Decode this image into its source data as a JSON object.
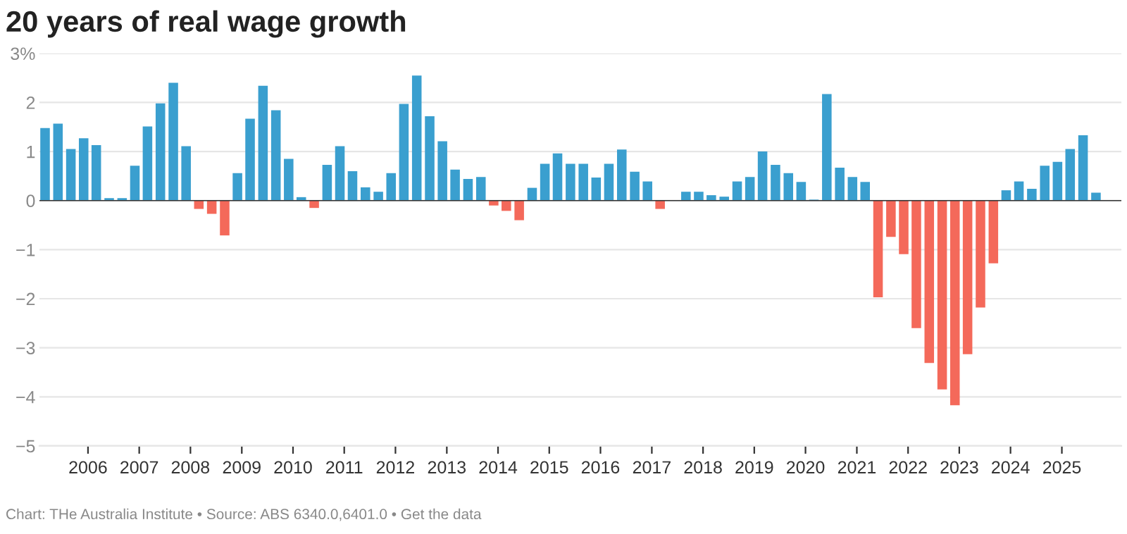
{
  "chart_data": {
    "type": "bar",
    "title": "20 years of real wage growth",
    "x": [
      "2005-03",
      "2005-06",
      "2005-09",
      "2005-12",
      "2006-03",
      "2006-06",
      "2006-09",
      "2006-12",
      "2007-03",
      "2007-06",
      "2007-09",
      "2007-12",
      "2008-03",
      "2008-06",
      "2008-09",
      "2008-12",
      "2009-03",
      "2009-06",
      "2009-09",
      "2009-12",
      "2010-03",
      "2010-06",
      "2010-09",
      "2010-12",
      "2011-03",
      "2011-06",
      "2011-09",
      "2011-12",
      "2012-03",
      "2012-06",
      "2012-09",
      "2012-12",
      "2013-03",
      "2013-06",
      "2013-09",
      "2013-12",
      "2014-03",
      "2014-06",
      "2014-09",
      "2014-12",
      "2015-03",
      "2015-06",
      "2015-09",
      "2015-12",
      "2016-03",
      "2016-06",
      "2016-09",
      "2016-12",
      "2017-03",
      "2017-06",
      "2017-09",
      "2017-12",
      "2018-03",
      "2018-06",
      "2018-09",
      "2018-12",
      "2019-03",
      "2019-06",
      "2019-09",
      "2019-12",
      "2020-03",
      "2020-06",
      "2020-09",
      "2020-12",
      "2021-03",
      "2021-06",
      "2021-09",
      "2021-12",
      "2022-03",
      "2022-06",
      "2022-09",
      "2022-12",
      "2023-03",
      "2023-06",
      "2023-09",
      "2023-12",
      "2024-03",
      "2024-06",
      "2024-09",
      "2024-12",
      "2025-03",
      "2025-06",
      "2025-09"
    ],
    "values": [
      1.48,
      1.57,
      1.05,
      1.27,
      1.13,
      0.05,
      0.05,
      0.71,
      1.51,
      1.98,
      2.4,
      1.11,
      -0.17,
      -0.27,
      -0.71,
      0.56,
      1.67,
      2.34,
      1.84,
      0.85,
      0.07,
      -0.15,
      0.73,
      1.11,
      0.6,
      0.27,
      0.18,
      0.56,
      1.97,
      2.55,
      1.72,
      1.21,
      0.63,
      0.44,
      0.48,
      -0.1,
      -0.21,
      -0.4,
      0.26,
      0.75,
      0.96,
      0.75,
      0.75,
      0.47,
      0.75,
      1.04,
      0.59,
      0.39,
      -0.17,
      null,
      0.18,
      0.18,
      0.11,
      0.08,
      0.39,
      0.48,
      1.0,
      0.73,
      0.56,
      0.38,
      0.02,
      2.17,
      0.67,
      0.48,
      0.38,
      -1.97,
      -0.74,
      -1.09,
      -2.6,
      -3.31,
      -3.85,
      -4.17,
      -3.13,
      -2.18,
      -1.28,
      0.21,
      0.39,
      0.24,
      0.71,
      0.79,
      1.05,
      1.33,
      0.16
    ],
    "colors": [
      "#3a9fcf",
      "#3a9fcf",
      "#3a9fcf",
      "#3a9fcf",
      "#3a9fcf",
      "#3a9fcf",
      "#3a9fcf",
      "#3a9fcf",
      "#3a9fcf",
      "#3a9fcf",
      "#3a9fcf",
      "#3a9fcf",
      "#f4695a",
      "#f4695a",
      "#f4695a",
      "#3a9fcf",
      "#3a9fcf",
      "#3a9fcf",
      "#3a9fcf",
      "#3a9fcf",
      "#3a9fcf",
      "#f4695a",
      "#3a9fcf",
      "#3a9fcf",
      "#3a9fcf",
      "#3a9fcf",
      "#3a9fcf",
      "#3a9fcf",
      "#3a9fcf",
      "#3a9fcf",
      "#3a9fcf",
      "#3a9fcf",
      "#3a9fcf",
      "#3a9fcf",
      "#3a9fcf",
      "#f4695a",
      "#f4695a",
      "#f4695a",
      "#3a9fcf",
      "#3a9fcf",
      "#3a9fcf",
      "#3a9fcf",
      "#3a9fcf",
      "#3a9fcf",
      "#3a9fcf",
      "#3a9fcf",
      "#3a9fcf",
      "#3a9fcf",
      "#f4695a",
      "#3a9fcf",
      "#3a9fcf",
      "#3a9fcf",
      "#3a9fcf",
      "#3a9fcf",
      "#3a9fcf",
      "#3a9fcf",
      "#3a9fcf",
      "#3a9fcf",
      "#3a9fcf",
      "#3a9fcf",
      "#3a9fcf",
      "#3a9fcf",
      "#3a9fcf",
      "#3a9fcf",
      "#3a9fcf",
      "#f4695a",
      "#f4695a",
      "#f4695a",
      "#f4695a",
      "#f4695a",
      "#f4695a",
      "#f4695a",
      "#f4695a",
      "#f4695a",
      "#f4695a",
      "#3a9fcf",
      "#3a9fcf",
      "#3a9fcf",
      "#3a9fcf",
      "#3a9fcf",
      "#3a9fcf",
      "#3a9fcf",
      "#3a9fcf"
    ],
    "xlim": [
      "2005-01-20",
      "2026-03-01"
    ],
    "xticks": [
      "2006",
      "2007",
      "2008",
      "2009",
      "2010",
      "2011",
      "2012",
      "2013",
      "2014",
      "2015",
      "2016",
      "2017",
      "2018",
      "2019",
      "2020",
      "2021",
      "2022",
      "2023",
      "2024",
      "2025"
    ],
    "ylim": [
      -5,
      3
    ],
    "yticks": [
      {
        "value": 3,
        "label": "3%"
      },
      2,
      1,
      0,
      -1,
      -2,
      -3,
      -4,
      -5
    ],
    "grid": "y",
    "ref_lines": [
      {
        "axis": "y",
        "value": 0,
        "color": "#333333"
      }
    ],
    "annotations": [
      "Chart: THe Australia Institute • Source: ABS 6340.0,6401.0 • Get the data"
    ]
  }
}
